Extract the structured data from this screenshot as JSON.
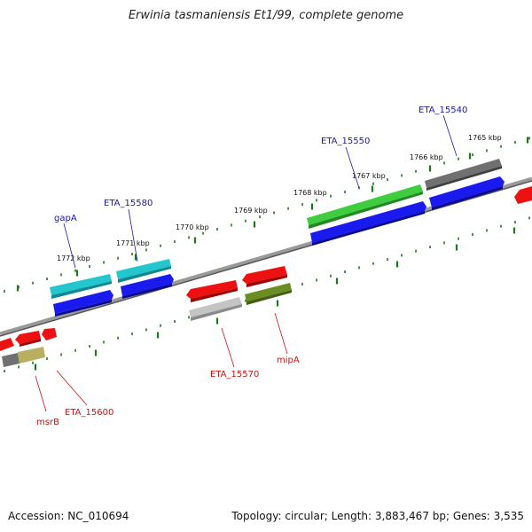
{
  "title": "Erwinia tasmaniensis Et1/99, complete genome",
  "footer": {
    "accession": "Accession: NC_010694",
    "topology": "Topology: circular; Length: 3,883,467 bp; Genes: 3,535"
  },
  "colors": {
    "background": "#ffffff",
    "backbone": "#808080",
    "tick": "#1a7a1a",
    "label_forward": "#1a1aa6",
    "label_reverse": "#cc1111"
  },
  "ruler_labels": [
    "1765 kbp",
    "1766 kbp",
    "1767 kbp",
    "1768 kbp",
    "1769 kbp",
    "1770 kbp",
    "1771 kbp",
    "1772 kbp"
  ],
  "gene_labels": {
    "forward": [
      "ETA_15540",
      "ETA_15550",
      "ETA_15580",
      "gapA"
    ],
    "reverse": [
      "ETA_15570",
      "mipA",
      "ETA_15600",
      "msrB"
    ]
  }
}
